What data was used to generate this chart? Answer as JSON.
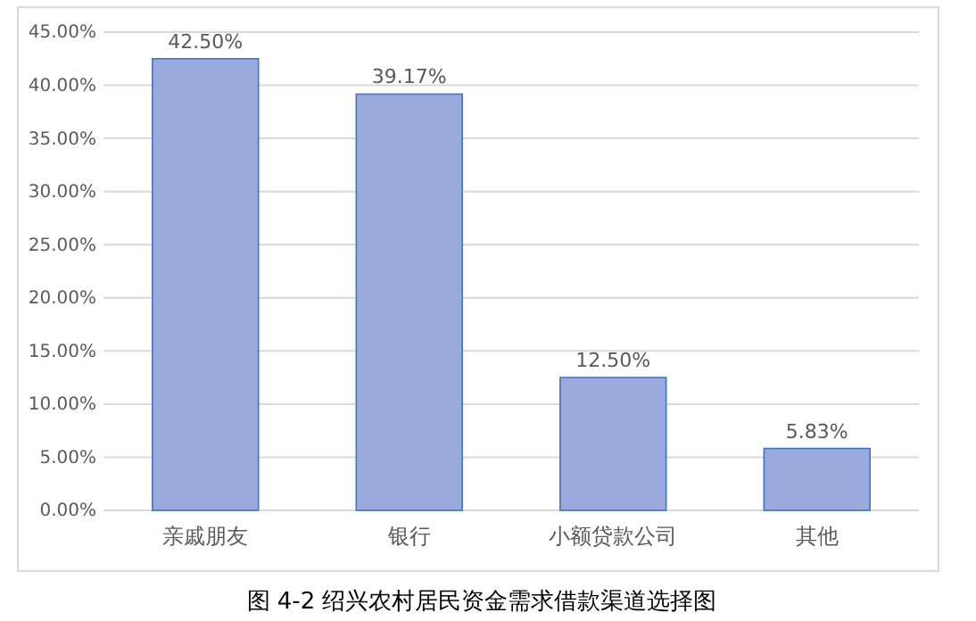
{
  "chart_data": {
    "type": "bar",
    "title": "图 4-2   绍兴农村居民资金需求借款渠道选择图",
    "categories": [
      "亲戚朋友",
      "银行",
      "小额贷款公司",
      "其他"
    ],
    "values": [
      42.5,
      39.17,
      12.5,
      5.83
    ],
    "value_labels": [
      "42.50%",
      "39.17%",
      "12.50%",
      "5.83%"
    ],
    "color": "#9aaadc",
    "ylim": [
      0,
      45
    ],
    "yticks": [
      {
        "value": 0,
        "label": "0.00%"
      },
      {
        "value": 5,
        "label": "5.00%"
      },
      {
        "value": 10,
        "label": "10.00%"
      },
      {
        "value": 15,
        "label": "15.00%"
      },
      {
        "value": 20,
        "label": "20.00%"
      },
      {
        "value": 25,
        "label": "25.00%"
      },
      {
        "value": 30,
        "label": "30.00%"
      },
      {
        "value": 35,
        "label": "35.00%"
      },
      {
        "value": 40,
        "label": "40.00%"
      },
      {
        "value": 45,
        "label": "45.00%"
      }
    ],
    "grid": "y"
  }
}
